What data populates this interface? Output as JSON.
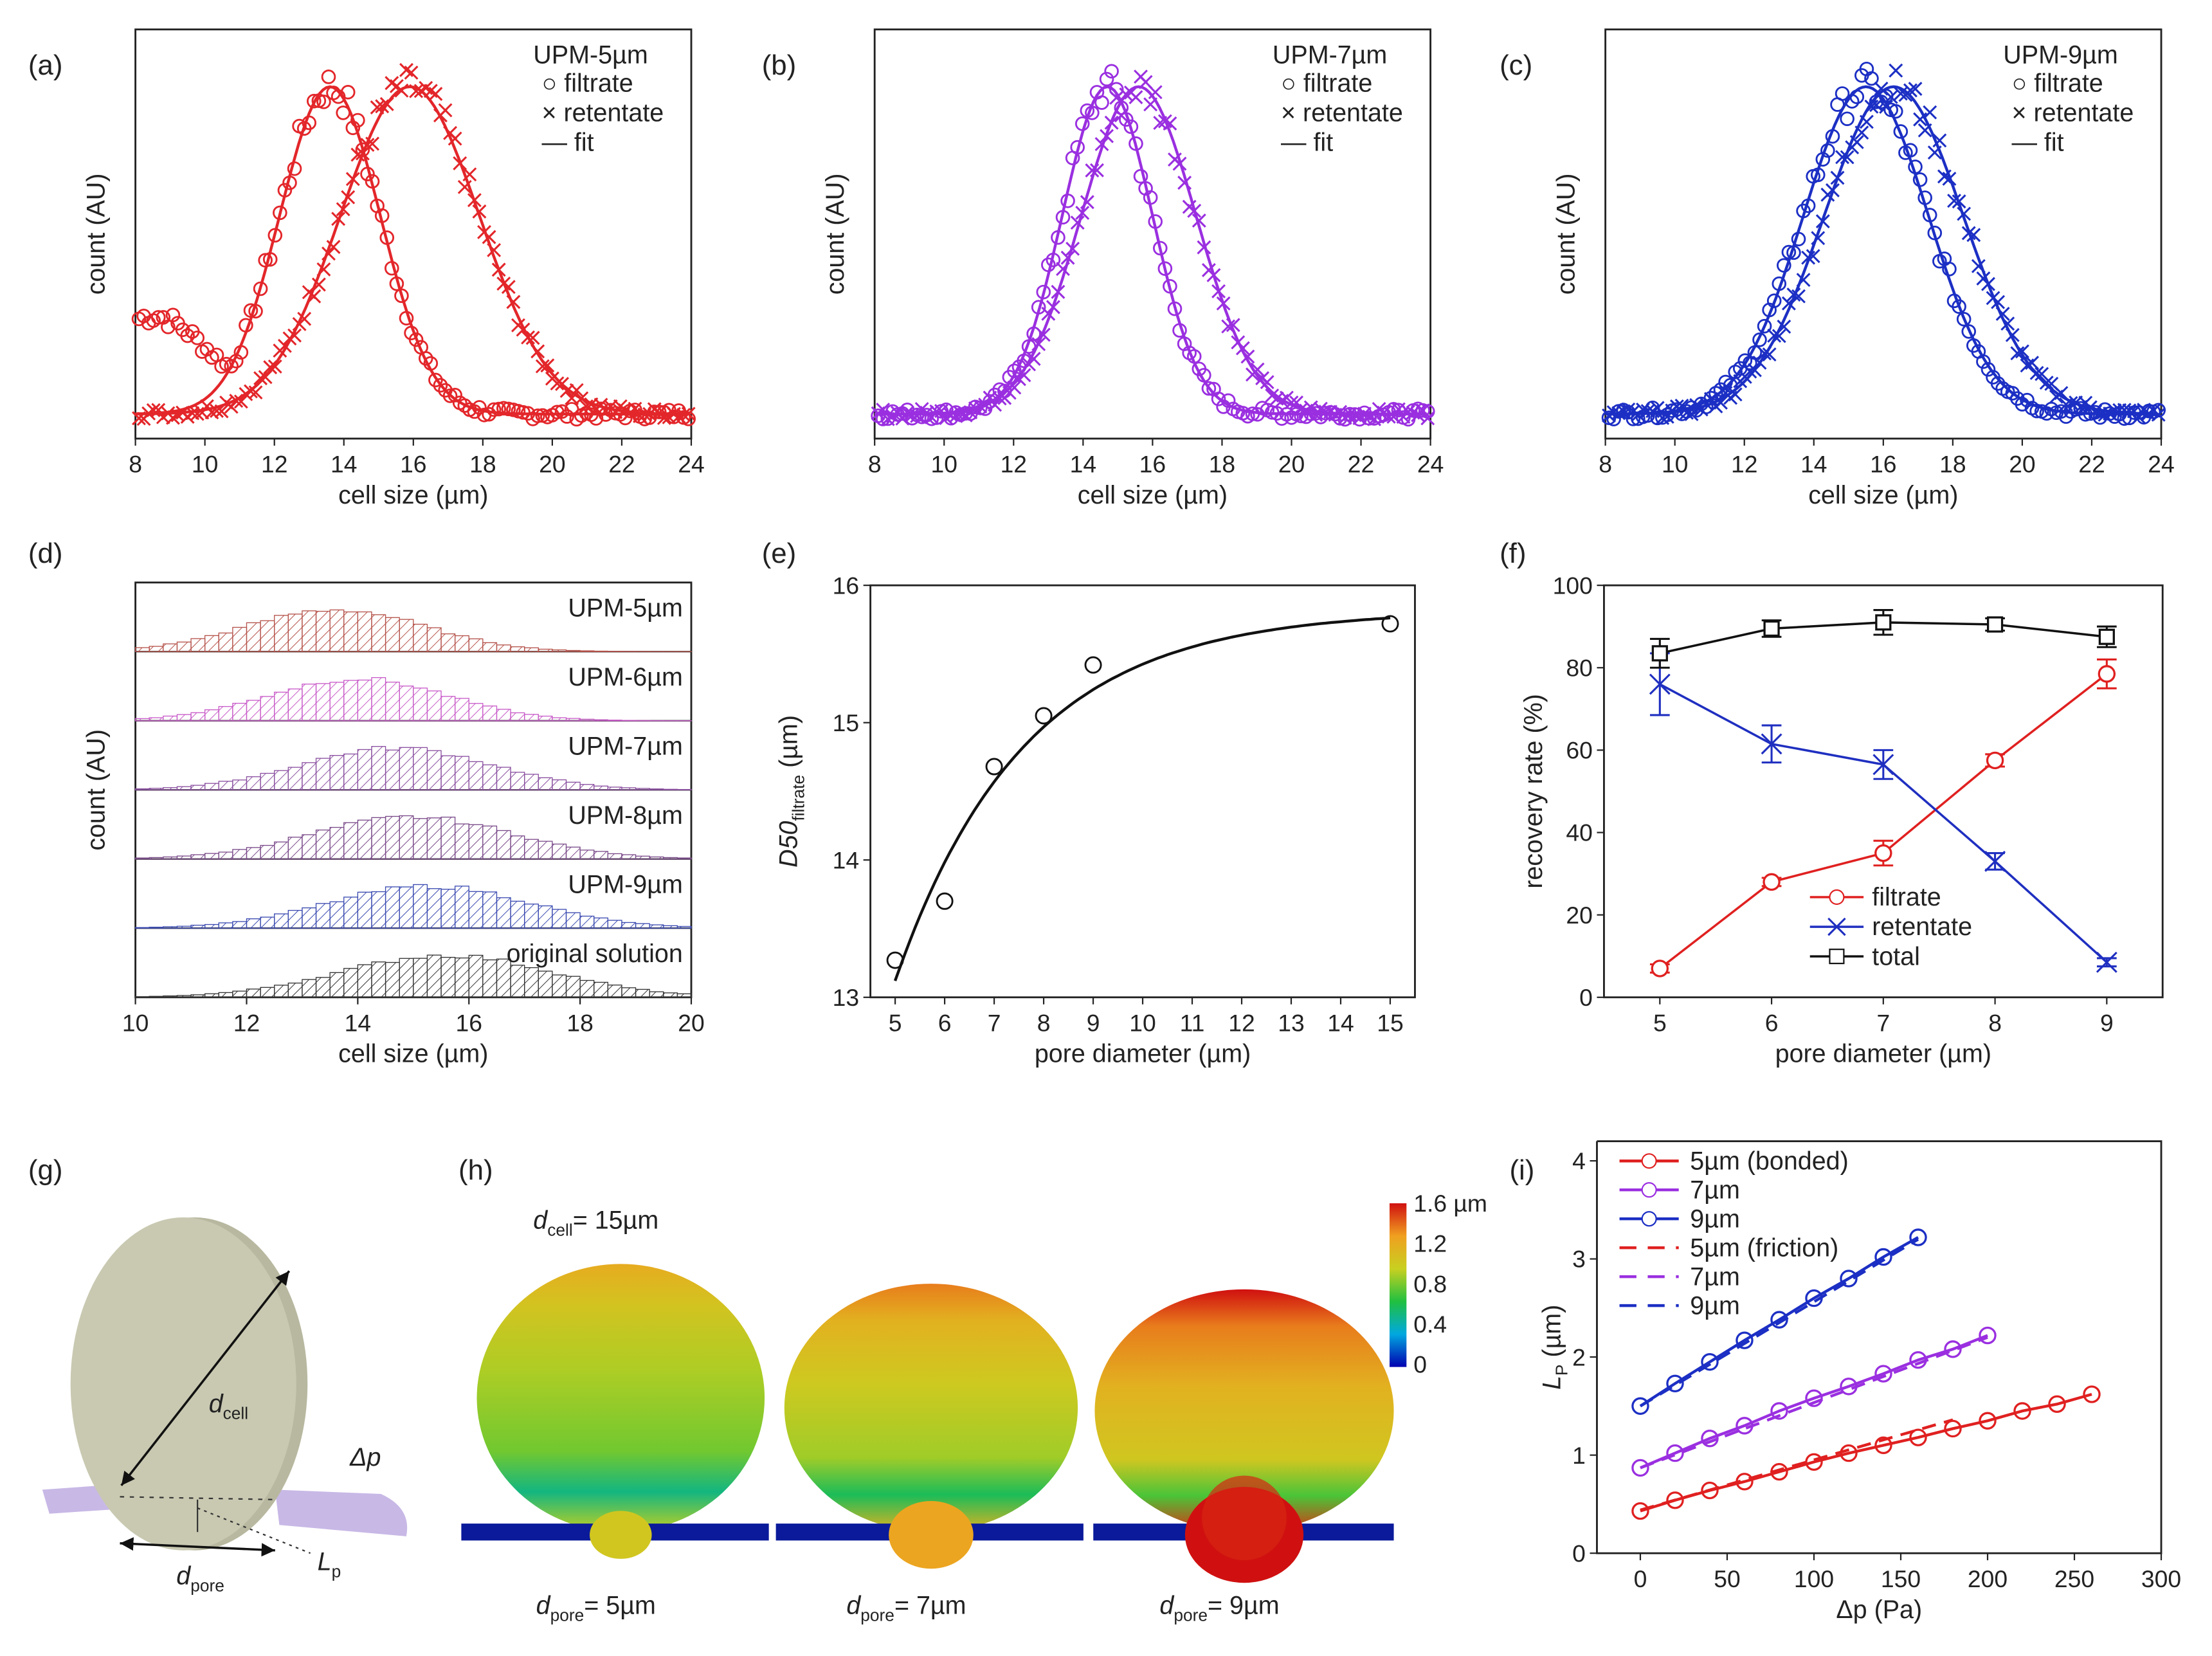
{
  "panel_labels": [
    "(a)",
    "(b)",
    "(c)",
    "(d)",
    "(e)",
    "(f)",
    "(g)",
    "(h)",
    "(i)"
  ],
  "chart_data": [
    {
      "panel": "(a)",
      "type": "scatter",
      "xlabel": "cell size (µm)",
      "ylabel": "count (AU)",
      "xlim": [
        8,
        24
      ],
      "xticks": [
        "8",
        "10",
        "12",
        "14",
        "16",
        "18",
        "20",
        "22",
        "24"
      ],
      "yticks": [],
      "legend_title": "UPM-5µm",
      "legend_position": "top-right",
      "color": "#e3262a",
      "series": [
        {
          "name": "filtrate",
          "marker": "○ filtrate",
          "center": 13.6,
          "sigma": 1.45,
          "low_tail": 0.22
        },
        {
          "name": "retentate",
          "marker": "× retentate",
          "center": 15.9,
          "sigma": 2.0,
          "low_tail": 0
        },
        {
          "name": "fit",
          "marker": "— fit"
        }
      ]
    },
    {
      "panel": "(b)",
      "type": "scatter",
      "xlabel": "cell size (µm)",
      "ylabel": "count (AU)",
      "xlim": [
        8,
        24
      ],
      "xticks": [
        "8",
        "10",
        "12",
        "14",
        "16",
        "18",
        "20",
        "22",
        "24"
      ],
      "yticks": [],
      "legend_title": "UPM-7µm",
      "legend_position": "top-right",
      "color": "#9a2fe0",
      "series": [
        {
          "name": "filtrate",
          "marker": "○ filtrate",
          "center": 14.7,
          "sigma": 1.3,
          "low_tail": 0
        },
        {
          "name": "retentate",
          "marker": "× retentate",
          "center": 15.6,
          "sigma": 1.65,
          "low_tail": 0
        },
        {
          "name": "fit",
          "marker": "— fit"
        }
      ]
    },
    {
      "panel": "(c)",
      "type": "scatter",
      "xlabel": "cell size (µm)",
      "ylabel": "count (AU)",
      "xlim": [
        8,
        24
      ],
      "xticks": [
        "8",
        "10",
        "12",
        "14",
        "16",
        "18",
        "20",
        "22",
        "24"
      ],
      "yticks": [],
      "legend_title": "UPM-9µm",
      "legend_position": "top-right",
      "color": "#1c2fc4",
      "series": [
        {
          "name": "filtrate",
          "marker": "○ filtrate",
          "center": 15.5,
          "sigma": 1.8,
          "low_tail": 0
        },
        {
          "name": "retentate",
          "marker": "× retentate",
          "center": 16.3,
          "sigma": 2.0,
          "low_tail": 0
        },
        {
          "name": "fit",
          "marker": "— fit"
        }
      ]
    },
    {
      "panel": "(d)",
      "type": "bar",
      "xlabel": "cell size (µm)",
      "ylabel": "count (AU)",
      "xlim": [
        10,
        20
      ],
      "xticks": [
        "10",
        "12",
        "14",
        "16",
        "18",
        "20"
      ],
      "series": [
        {
          "name": "UPM-5µm",
          "color": "#b5524a",
          "label_color": "#d42020",
          "center": 13.6,
          "sigma": 1.6
        },
        {
          "name": "UPM-6µm",
          "color": "#c85ac8",
          "label_color": "#d030d0",
          "center": 14.0,
          "sigma": 1.6
        },
        {
          "name": "UPM-7µm",
          "color": "#8a4fa0",
          "label_color": "#9040b8",
          "center": 14.7,
          "sigma": 1.7
        },
        {
          "name": "UPM-8µm",
          "color": "#7a4a8a",
          "label_color": "#8040a8",
          "center": 15.0,
          "sigma": 1.8
        },
        {
          "name": "UPM-9µm",
          "color": "#3a4ab0",
          "label_color": "#3040c0",
          "center": 15.3,
          "sigma": 1.8
        },
        {
          "name": "original solution",
          "color": "#333333",
          "label_color": "#222222",
          "center": 15.6,
          "sigma": 1.9
        }
      ]
    },
    {
      "panel": "(e)",
      "type": "scatter",
      "xlabel": "pore diameter (µm)",
      "ylabel": {
        "main": "D50",
        "sub": "filtrate",
        "unit": " (µm)"
      },
      "xlim": [
        4.5,
        15.5
      ],
      "ylim": [
        13,
        16
      ],
      "xticks": [
        "5",
        "6",
        "7",
        "8",
        "9",
        "10",
        "11",
        "12",
        "13",
        "14",
        "15"
      ],
      "yticks": [
        "13",
        "14",
        "15",
        "16"
      ],
      "x": [
        5,
        6,
        7,
        8,
        9,
        15
      ],
      "y": [
        13.27,
        13.7,
        14.68,
        15.05,
        15.42,
        15.72
      ],
      "fit": {
        "type": "exponential",
        "plateau": 15.82,
        "amplitude": 2.7,
        "x0": 5,
        "tau": 2.6
      }
    },
    {
      "panel": "(f)",
      "type": "line",
      "xlabel": "pore diameter (µm)",
      "ylabel": "recovery rate (%)",
      "xlim": [
        4.5,
        9.5
      ],
      "ylim": [
        0,
        100
      ],
      "xticks": [
        "5",
        "6",
        "7",
        "8",
        "9"
      ],
      "yticks": [
        "0",
        "20",
        "40",
        "60",
        "80",
        "100"
      ],
      "x": [
        5,
        6,
        7,
        8,
        9
      ],
      "legend_position": "bottom-center",
      "series": [
        {
          "name": "filtrate",
          "color": "#e02020",
          "marker": "circle",
          "values": [
            7,
            28,
            35,
            57.5,
            78.5
          ],
          "errors": [
            1,
            1,
            3,
            1.5,
            3.5
          ]
        },
        {
          "name": "retentate",
          "color": "#1f2fc0",
          "marker": "x",
          "values": [
            76,
            61.5,
            56.5,
            33,
            8.5
          ],
          "errors": [
            7.5,
            4.5,
            3.5,
            2,
            1
          ]
        },
        {
          "name": "total",
          "color": "#111111",
          "marker": "square",
          "values": [
            83.5,
            89.5,
            91,
            90.5,
            87.5
          ],
          "errors": [
            3.5,
            2,
            3,
            1.5,
            2.5
          ]
        }
      ]
    },
    {
      "panel": "(i)",
      "type": "line",
      "xlabel": "Δp (Pa)",
      "ylabel": {
        "main": "L",
        "sub": "P",
        "unit": " (µm)"
      },
      "xlim": [
        -25,
        300
      ],
      "ylim": [
        0,
        4.2
      ],
      "xticks": [
        "0",
        "50",
        "100",
        "150",
        "200",
        "250",
        "300"
      ],
      "yticks": [
        "0",
        "1",
        "2",
        "3",
        "4"
      ],
      "legend_position": "top-left",
      "series": [
        {
          "name": "5µm (bonded)",
          "color": "#e02020",
          "style": "solid",
          "x": [
            0,
            20,
            40,
            60,
            80,
            100,
            120,
            140,
            160,
            180,
            200,
            220,
            240,
            260
          ],
          "values": [
            0.43,
            0.54,
            0.64,
            0.73,
            0.83,
            0.93,
            1.02,
            1.1,
            1.18,
            1.27,
            1.35,
            1.45,
            1.52,
            1.62
          ]
        },
        {
          "name": "7µm",
          "color": "#9a2fe0",
          "style": "solid",
          "x": [
            0,
            20,
            40,
            60,
            80,
            100,
            120,
            140,
            160,
            180,
            200
          ],
          "values": [
            0.87,
            1.02,
            1.17,
            1.3,
            1.45,
            1.58,
            1.7,
            1.83,
            1.97,
            2.08,
            2.22
          ]
        },
        {
          "name": "9µm",
          "color": "#1c2fc4",
          "style": "solid",
          "x": [
            0,
            20,
            40,
            60,
            80,
            100,
            120,
            140,
            160
          ],
          "values": [
            1.5,
            1.73,
            1.95,
            2.17,
            2.38,
            2.6,
            2.8,
            3.02,
            3.22
          ]
        },
        {
          "name": "5µm (friction)",
          "color": "#e02020",
          "style": "dashed",
          "x": [
            0,
            180
          ],
          "values": [
            0.44,
            1.36
          ]
        },
        {
          "name": "7µm",
          "color": "#9a2fe0",
          "style": "dashed",
          "x": [
            0,
            200
          ],
          "values": [
            0.87,
            2.2
          ]
        },
        {
          "name": "9µm",
          "color": "#1c2fc4",
          "style": "dashed",
          "x": [
            0,
            160
          ],
          "values": [
            1.5,
            3.2
          ]
        }
      ]
    }
  ],
  "illustrations": {
    "g": {
      "d": "d",
      "cell": "cell",
      "pore": "pore",
      "dp": "Δp",
      "L": "L",
      "p": "p",
      "cell_color": "#c9c9b2",
      "membrane_color": "#c8b8e6"
    },
    "h": {
      "cell_label": {
        "main": "d",
        "sub": "cell",
        "suffix": "= 15µm"
      },
      "pore_labels": [
        {
          "main": "d",
          "sub": "pore",
          "suffix": "= 5µm",
          "level": 0.35
        },
        {
          "main": "d",
          "sub": "pore",
          "suffix": "= 7µm",
          "level": 0.6
        },
        {
          "main": "d",
          "sub": "pore",
          "suffix": "= 9µm",
          "level": 1.0
        }
      ],
      "colorbar_ticks": [
        "0",
        "0.4",
        "0.8",
        "1.2",
        "1.6 µm"
      ],
      "colorbar_colors": [
        "#0000b0",
        "#00a8e0",
        "#20c040",
        "#c8d020",
        "#f0a020",
        "#d01010"
      ],
      "membrane_color": "#0a1a9a"
    }
  }
}
